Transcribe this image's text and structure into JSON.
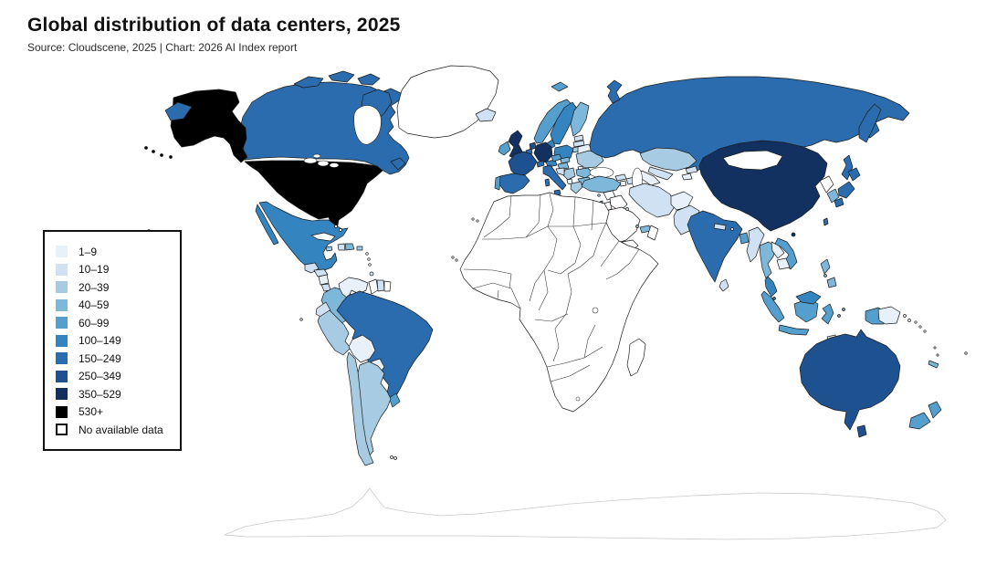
{
  "header": {
    "title": "Global distribution of data centers, 2025",
    "source": "Source: Cloudscene, 2025 | Chart: 2026 AI Index report"
  },
  "chart_data": {
    "type": "choropleth",
    "title": "Global distribution of data centers, 2025",
    "source": "Source: Cloudscene, 2025 | Chart: 2026 AI Index report",
    "unit": "number of data centers per country",
    "legend": {
      "position": "left",
      "bins": [
        {
          "label": "1–9",
          "color": "#e8f1fa"
        },
        {
          "label": "10–19",
          "color": "#cfe1f2"
        },
        {
          "label": "20–39",
          "color": "#a6cbe3"
        },
        {
          "label": "40–59",
          "color": "#7db8da"
        },
        {
          "label": "60–99",
          "color": "#549fcd"
        },
        {
          "label": "100–149",
          "color": "#3484c0"
        },
        {
          "label": "150–249",
          "color": "#2a6cad"
        },
        {
          "label": "250–349",
          "color": "#1d5190"
        },
        {
          "label": "350–529",
          "color": "#123161"
        },
        {
          "label": "530+",
          "color": "#000000"
        },
        {
          "label": "No available data",
          "color": "#ffffff"
        }
      ]
    },
    "countries": [
      {
        "name": "United States",
        "bin": "530+"
      },
      {
        "name": "China",
        "bin": "350–529"
      },
      {
        "name": "Germany",
        "bin": "350–529"
      },
      {
        "name": "United Kingdom",
        "bin": "350–529"
      },
      {
        "name": "France",
        "bin": "250–349"
      },
      {
        "name": "Australia",
        "bin": "250–349"
      },
      {
        "name": "Netherlands",
        "bin": "250–349"
      },
      {
        "name": "Canada",
        "bin": "150–249"
      },
      {
        "name": "Russia",
        "bin": "150–249"
      },
      {
        "name": "Brazil",
        "bin": "150–249"
      },
      {
        "name": "India",
        "bin": "150–249"
      },
      {
        "name": "Japan",
        "bin": "150–249"
      },
      {
        "name": "Spain",
        "bin": "150–249"
      },
      {
        "name": "Italy",
        "bin": "150–249"
      },
      {
        "name": "Belgium",
        "bin": "150–249"
      },
      {
        "name": "Switzerland",
        "bin": "150–249"
      },
      {
        "name": "Taiwan",
        "bin": "150–249"
      },
      {
        "name": "Singapore",
        "bin": "150–249"
      },
      {
        "name": "Mexico",
        "bin": "100–149"
      },
      {
        "name": "Poland",
        "bin": "100–149"
      },
      {
        "name": "Sweden",
        "bin": "100–149"
      },
      {
        "name": "Malaysia",
        "bin": "100–149"
      },
      {
        "name": "Austria",
        "bin": "100–149"
      },
      {
        "name": "Denmark",
        "bin": "100–149"
      },
      {
        "name": "Indonesia",
        "bin": "60–99"
      },
      {
        "name": "Norway",
        "bin": "60–99"
      },
      {
        "name": "Ireland",
        "bin": "60–99"
      },
      {
        "name": "Portugal",
        "bin": "60–99"
      },
      {
        "name": "Czechia",
        "bin": "60–99"
      },
      {
        "name": "Vietnam",
        "bin": "60–99"
      },
      {
        "name": "Bangladesh",
        "bin": "60–99"
      },
      {
        "name": "New Zealand",
        "bin": "60–99"
      },
      {
        "name": "Uruguay",
        "bin": "60–99"
      },
      {
        "name": "Israel",
        "bin": "60–99"
      },
      {
        "name": "Turkey",
        "bin": "40–59"
      },
      {
        "name": "Colombia",
        "bin": "40–59"
      },
      {
        "name": "Finland",
        "bin": "40–59"
      },
      {
        "name": "Thailand",
        "bin": "40–59"
      },
      {
        "name": "Philippines",
        "bin": "40–59"
      },
      {
        "name": "South Korea",
        "bin": "40–59"
      },
      {
        "name": "United Arab Emirates",
        "bin": "40–59"
      },
      {
        "name": "Panama",
        "bin": "40–59"
      },
      {
        "name": "Dominican Republic",
        "bin": "40–59"
      },
      {
        "name": "Qatar",
        "bin": "40–59"
      },
      {
        "name": "Romania",
        "bin": "40–59"
      },
      {
        "name": "Bulgaria",
        "bin": "40–59"
      },
      {
        "name": "Hungary",
        "bin": "40–59"
      },
      {
        "name": "Slovakia",
        "bin": "40–59"
      },
      {
        "name": "New Caledonia",
        "bin": "40–59"
      },
      {
        "name": "Argentina",
        "bin": "20–39"
      },
      {
        "name": "Chile",
        "bin": "20–39"
      },
      {
        "name": "Peru",
        "bin": "20–39"
      },
      {
        "name": "Ukraine",
        "bin": "20–39"
      },
      {
        "name": "Kazakhstan",
        "bin": "20–39"
      },
      {
        "name": "Greece",
        "bin": "20–39"
      },
      {
        "name": "Serbia",
        "bin": "20–39"
      },
      {
        "name": "Jamaica",
        "bin": "20–39"
      },
      {
        "name": "Puerto Rico",
        "bin": "20–39"
      },
      {
        "name": "Cyprus",
        "bin": "20–39"
      },
      {
        "name": "Lithuania",
        "bin": "20–39"
      },
      {
        "name": "Iceland",
        "bin": "10–19"
      },
      {
        "name": "Pakistan",
        "bin": "10–19"
      },
      {
        "name": "Iran",
        "bin": "10–19"
      },
      {
        "name": "Myanmar",
        "bin": "10–19"
      },
      {
        "name": "Ecuador",
        "bin": "10–19"
      },
      {
        "name": "Guatemala",
        "bin": "10–19"
      },
      {
        "name": "Costa Rica",
        "bin": "10–19"
      },
      {
        "name": "Sri Lanka",
        "bin": "10–19"
      },
      {
        "name": "Nepal",
        "bin": "10–19"
      },
      {
        "name": "Croatia",
        "bin": "10–19"
      },
      {
        "name": "Latvia",
        "bin": "10–19"
      },
      {
        "name": "Estonia",
        "bin": "10–19"
      },
      {
        "name": "Georgia",
        "bin": "10–19"
      },
      {
        "name": "Azerbaijan",
        "bin": "10–19"
      },
      {
        "name": "Uzbekistan",
        "bin": "10–19"
      },
      {
        "name": "Kyrgyzstan",
        "bin": "10–19"
      },
      {
        "name": "Haiti",
        "bin": "10–19"
      },
      {
        "name": "Honduras",
        "bin": "10–19"
      },
      {
        "name": "Suriname",
        "bin": "10–19"
      },
      {
        "name": "Kuwait",
        "bin": "10–19"
      },
      {
        "name": "Fiji",
        "bin": "10–19"
      },
      {
        "name": "Trinidad and Tobago",
        "bin": "10–19"
      },
      {
        "name": "Venezuela",
        "bin": "1–9"
      },
      {
        "name": "Bolivia",
        "bin": "1–9"
      },
      {
        "name": "Paraguay",
        "bin": "1–9"
      },
      {
        "name": "Belarus",
        "bin": "1–9"
      },
      {
        "name": "Afghanistan",
        "bin": "1–9"
      },
      {
        "name": "Turkmenistan",
        "bin": "1–9"
      },
      {
        "name": "Tajikistan",
        "bin": "1–9"
      },
      {
        "name": "Armenia",
        "bin": "1–9"
      },
      {
        "name": "Nicaragua",
        "bin": "1–9"
      },
      {
        "name": "Laos",
        "bin": "1–9"
      },
      {
        "name": "Cambodia",
        "bin": "1–9"
      },
      {
        "name": "Bhutan",
        "bin": "1–9"
      },
      {
        "name": "Moldova",
        "bin": "1–9"
      },
      {
        "name": "Albania",
        "bin": "1–9"
      },
      {
        "name": "Timor-Leste",
        "bin": "1–9"
      },
      {
        "name": "Papua New Guinea",
        "bin": "1–9"
      },
      {
        "name": "Greenland",
        "bin": "No available data"
      },
      {
        "name": "Cuba",
        "bin": "No available data"
      },
      {
        "name": "Mongolia",
        "bin": "No available data"
      },
      {
        "name": "North Korea",
        "bin": "No available data"
      },
      {
        "name": "Saudi Arabia",
        "bin": "No available data"
      },
      {
        "name": "Iraq",
        "bin": "No available data"
      },
      {
        "name": "Syria",
        "bin": "No available data"
      },
      {
        "name": "Jordan",
        "bin": "No available data"
      },
      {
        "name": "Yemen",
        "bin": "No available data"
      },
      {
        "name": "Oman",
        "bin": "No available data"
      },
      {
        "name": "Guyana",
        "bin": "No available data"
      },
      {
        "name": "French Guiana",
        "bin": "No available data"
      },
      {
        "name": "Bahamas",
        "bin": "No available data"
      },
      {
        "name": "Morocco",
        "bin": "No available data"
      },
      {
        "name": "Algeria",
        "bin": "No available data"
      },
      {
        "name": "Tunisia",
        "bin": "No available data"
      },
      {
        "name": "Libya",
        "bin": "No available data"
      },
      {
        "name": "Egypt",
        "bin": "No available data"
      },
      {
        "name": "Sudan",
        "bin": "No available data"
      },
      {
        "name": "Ethiopia",
        "bin": "No available data"
      },
      {
        "name": "Somalia",
        "bin": "No available data"
      },
      {
        "name": "Kenya",
        "bin": "No available data"
      },
      {
        "name": "Tanzania",
        "bin": "No available data"
      },
      {
        "name": "Nigeria",
        "bin": "No available data"
      },
      {
        "name": "Ghana",
        "bin": "No available data"
      },
      {
        "name": "Senegal",
        "bin": "No available data"
      },
      {
        "name": "Mali",
        "bin": "No available data"
      },
      {
        "name": "Niger",
        "bin": "No available data"
      },
      {
        "name": "Chad",
        "bin": "No available data"
      },
      {
        "name": "Cameroon",
        "bin": "No available data"
      },
      {
        "name": "DR Congo",
        "bin": "No available data"
      },
      {
        "name": "Angola",
        "bin": "No available data"
      },
      {
        "name": "Zambia",
        "bin": "No available data"
      },
      {
        "name": "Zimbabwe",
        "bin": "No available data"
      },
      {
        "name": "Mozambique",
        "bin": "No available data"
      },
      {
        "name": "Botswana",
        "bin": "No available data"
      },
      {
        "name": "Namibia",
        "bin": "No available data"
      },
      {
        "name": "South Africa",
        "bin": "No available data"
      },
      {
        "name": "Madagascar",
        "bin": "No available data"
      },
      {
        "name": "Antarctica",
        "bin": "No available data"
      }
    ],
    "notes": "African countries, Greenland, Mongolia, Saudi Arabia and several others are shown in white (no available data); Antarctica drawn with faint gray outline."
  }
}
